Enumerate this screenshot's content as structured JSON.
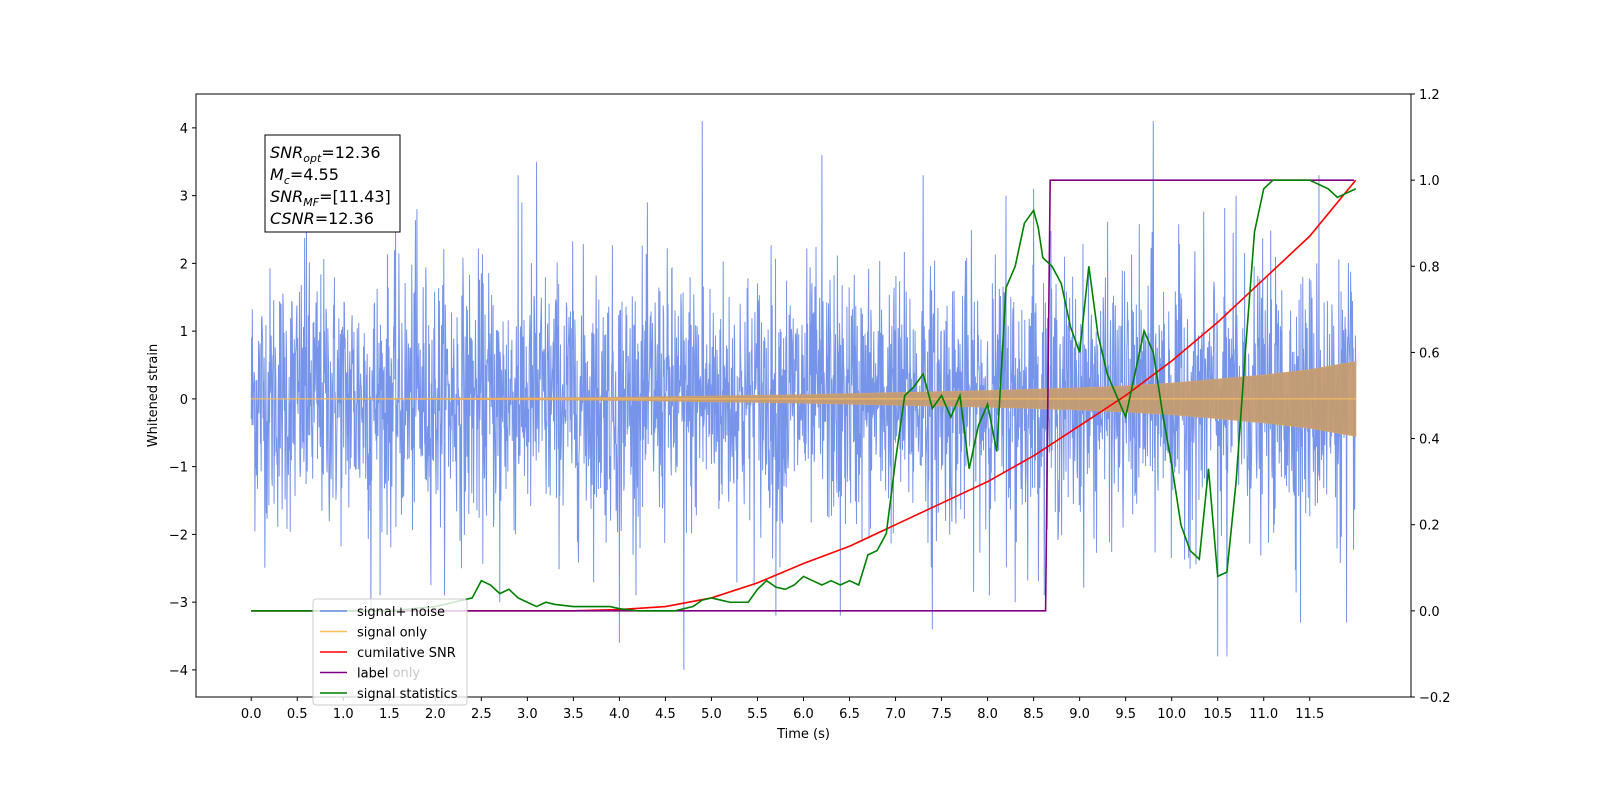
{
  "chart_data": {
    "type": "line",
    "xlabel": "Time (s)",
    "ylabel": "Whitened strain",
    "xlim": [
      -0.6,
      12.6
    ],
    "ylim": [
      -4.4,
      4.5
    ],
    "y2lim": [
      -0.2,
      1.2
    ],
    "x_ticks": [
      "0.0",
      "0.5",
      "1.0",
      "1.5",
      "2.0",
      "2.5",
      "3.0",
      "3.5",
      "4.0",
      "4.5",
      "5.0",
      "5.5",
      "6.0",
      "6.5",
      "7.0",
      "7.5",
      "8.0",
      "8.5",
      "9.0",
      "9.5",
      "10.0",
      "10.5",
      "11.0",
      "11.5"
    ],
    "x_tick_values": [
      0,
      0.5,
      1,
      1.5,
      2,
      2.5,
      3,
      3.5,
      4,
      4.5,
      5,
      5.5,
      6,
      6.5,
      7,
      7.5,
      8,
      8.5,
      9,
      9.5,
      10,
      10.5,
      11,
      11.5
    ],
    "y_ticks": [
      -4,
      -3,
      -2,
      -1,
      0,
      1,
      2,
      3,
      4
    ],
    "y2_ticks": [
      "−0.2",
      "0.0",
      "0.2",
      "0.4",
      "0.6",
      "0.8",
      "1.0",
      "1.2"
    ],
    "y2_tick_values": [
      -0.2,
      0,
      0.2,
      0.4,
      0.6,
      0.8,
      1.0,
      1.2
    ],
    "annotation": {
      "lines": [
        {
          "main": "SNR",
          "sub": "opt",
          "rest": "=12.36"
        },
        {
          "main": "M",
          "sub": "c",
          "rest": "=4.55"
        },
        {
          "main": "SNR",
          "sub": "MF",
          "rest": "=[11.43]"
        },
        {
          "main": "CSNR",
          "sub": "",
          "rest": "=12.36"
        }
      ]
    },
    "legend": {
      "placement": "lower-left",
      "entries": [
        {
          "label": "signal+ noise",
          "color": "#6f8ee8"
        },
        {
          "label": "signal only",
          "color": "#ffbf5a"
        },
        {
          "label": "cumilative SNR",
          "color": "#ff0000"
        },
        {
          "label": "label",
          "color": "#800080"
        },
        {
          "label": "signal statistics",
          "color": "#008000"
        }
      ],
      "hidden_text": "label only"
    },
    "series": [
      {
        "name": "signal+ noise",
        "axis": "left",
        "color": "#6f8ee8",
        "x_range": [
          0,
          12.0
        ],
        "noise_sigma": 1.0,
        "peaks": [
          [
            0.6,
            2.7
          ],
          [
            1.8,
            2.8
          ],
          [
            2.9,
            3.3
          ],
          [
            3.1,
            3.5
          ],
          [
            4.9,
            4.1
          ],
          [
            5.7,
            3.5
          ],
          [
            6.2,
            3.6
          ],
          [
            7.3,
            3.3
          ],
          [
            8.2,
            3.0
          ],
          [
            8.5,
            3.1
          ],
          [
            9.8,
            4.1
          ],
          [
            10.7,
            3.0
          ],
          [
            11.6,
            3.3
          ],
          [
            1.3,
            -3.1
          ],
          [
            2.7,
            -3.0
          ],
          [
            4.0,
            -3.6
          ],
          [
            4.7,
            -4.0
          ],
          [
            5.7,
            -3.2
          ],
          [
            6.4,
            -3.2
          ],
          [
            7.4,
            -3.4
          ],
          [
            8.3,
            -3.0
          ],
          [
            10.5,
            -3.8
          ],
          [
            10.6,
            -3.8
          ],
          [
            11.4,
            -3.3
          ],
          [
            11.9,
            -3.3
          ]
        ]
      },
      {
        "name": "signal only",
        "axis": "left",
        "color": "#ffbf5a",
        "envelope": [
          [
            0,
            0.0
          ],
          [
            2,
            0.005
          ],
          [
            4,
            0.02
          ],
          [
            6,
            0.06
          ],
          [
            7,
            0.09
          ],
          [
            8,
            0.12
          ],
          [
            9,
            0.16
          ],
          [
            9.5,
            0.19
          ],
          [
            10,
            0.23
          ],
          [
            10.5,
            0.29
          ],
          [
            11,
            0.35
          ],
          [
            11.5,
            0.43
          ],
          [
            12,
            0.55
          ]
        ]
      },
      {
        "name": "cumilative SNR",
        "axis": "right",
        "color": "#ff0000",
        "x": [
          0,
          3.5,
          4,
          4.5,
          5,
          5.5,
          6,
          6.5,
          7,
          7.5,
          8,
          8.5,
          9,
          9.5,
          10,
          10.5,
          11,
          11.5,
          12
        ],
        "y": [
          0,
          0,
          0.003,
          0.01,
          0.03,
          0.065,
          0.11,
          0.15,
          0.2,
          0.25,
          0.3,
          0.36,
          0.43,
          0.5,
          0.58,
          0.67,
          0.77,
          0.87,
          1.0
        ]
      },
      {
        "name": "label",
        "axis": "right",
        "color": "#800080",
        "x": [
          0,
          8.63,
          8.68,
          11.98
        ],
        "y": [
          0,
          0,
          1,
          1
        ]
      },
      {
        "name": "signal statistics",
        "axis": "right",
        "color": "#008000",
        "x": [
          0,
          0.5,
          1,
          1.5,
          2,
          2.2,
          2.4,
          2.5,
          2.6,
          2.7,
          2.8,
          2.9,
          3.0,
          3.1,
          3.2,
          3.3,
          3.5,
          3.7,
          3.9,
          4.0,
          4.2,
          4.4,
          4.6,
          4.8,
          4.9,
          5.0,
          5.1,
          5.2,
          5.3,
          5.4,
          5.5,
          5.6,
          5.7,
          5.8,
          5.9,
          6.0,
          6.1,
          6.2,
          6.3,
          6.4,
          6.5,
          6.6,
          6.7,
          6.8,
          6.9,
          7.0,
          7.1,
          7.2,
          7.3,
          7.4,
          7.5,
          7.6,
          7.7,
          7.8,
          7.9,
          8.0,
          8.1,
          8.2,
          8.3,
          8.4,
          8.5,
          8.55,
          8.6,
          8.7,
          8.8,
          8.9,
          9.0,
          9.1,
          9.2,
          9.3,
          9.4,
          9.5,
          9.6,
          9.7,
          9.8,
          9.9,
          10.0,
          10.1,
          10.2,
          10.3,
          10.4,
          10.5,
          10.6,
          10.7,
          10.8,
          10.9,
          11.0,
          11.1,
          11.2,
          11.5,
          11.7,
          11.8,
          11.9,
          12.0
        ],
        "y": [
          0,
          0,
          0,
          0,
          0.01,
          0.02,
          0.03,
          0.07,
          0.06,
          0.04,
          0.05,
          0.03,
          0.02,
          0.01,
          0.02,
          0.015,
          0.01,
          0.01,
          0.01,
          0.005,
          0.0,
          0.0,
          0.0,
          0.01,
          0.025,
          0.03,
          0.025,
          0.02,
          0.02,
          0.02,
          0.05,
          0.07,
          0.055,
          0.05,
          0.06,
          0.08,
          0.07,
          0.06,
          0.07,
          0.06,
          0.07,
          0.06,
          0.13,
          0.14,
          0.18,
          0.35,
          0.5,
          0.52,
          0.55,
          0.47,
          0.5,
          0.45,
          0.5,
          0.33,
          0.43,
          0.48,
          0.37,
          0.75,
          0.8,
          0.9,
          0.93,
          0.89,
          0.82,
          0.8,
          0.76,
          0.66,
          0.6,
          0.8,
          0.64,
          0.55,
          0.5,
          0.45,
          0.55,
          0.65,
          0.6,
          0.46,
          0.34,
          0.2,
          0.14,
          0.12,
          0.33,
          0.08,
          0.09,
          0.3,
          0.6,
          0.88,
          0.98,
          1.0,
          1.0,
          1.0,
          0.98,
          0.96,
          0.97,
          0.98
        ]
      }
    ]
  }
}
